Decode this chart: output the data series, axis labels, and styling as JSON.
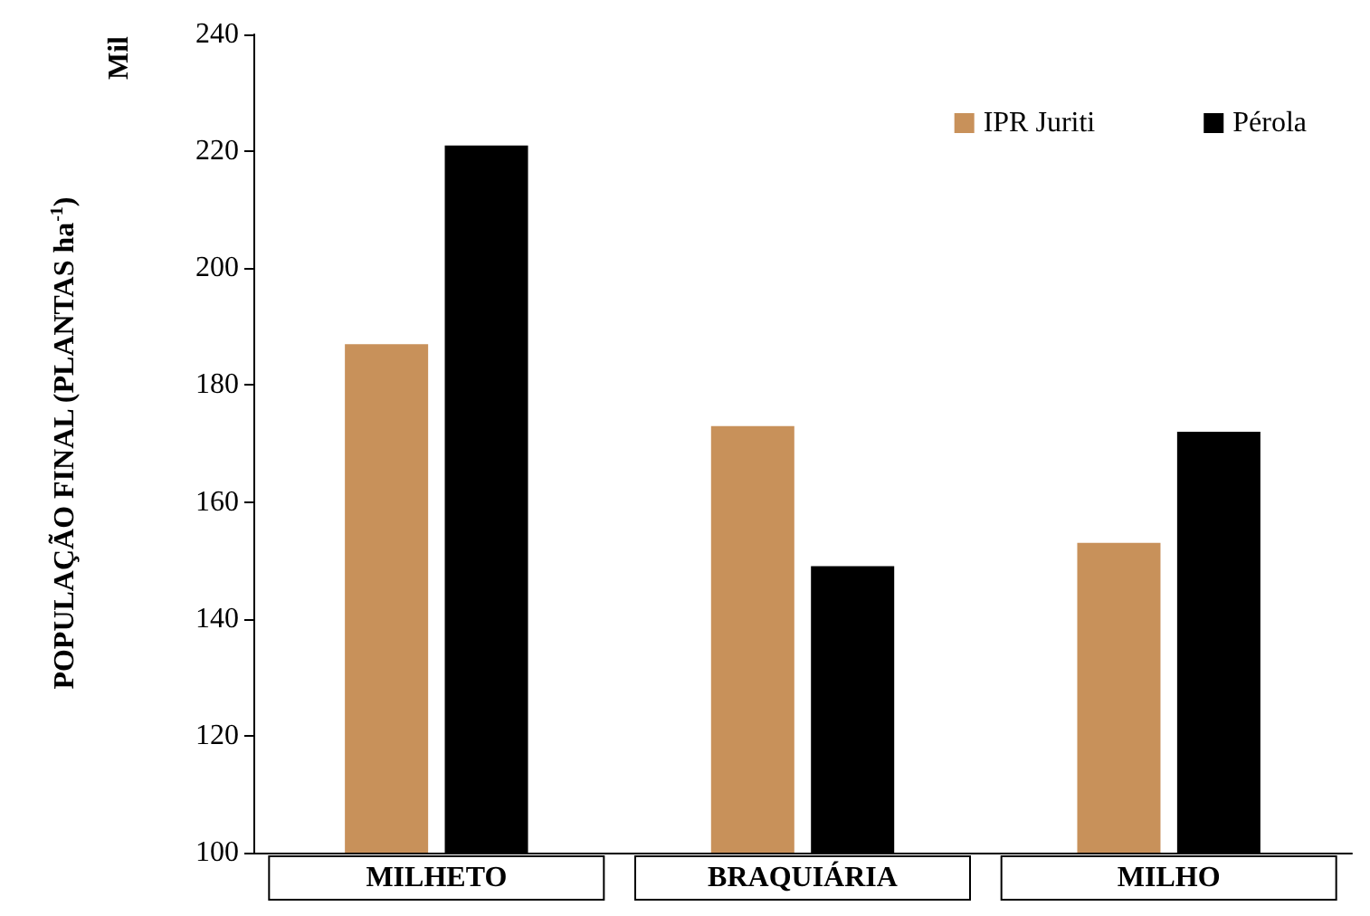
{
  "chart_data": {
    "type": "bar",
    "ylabel": "POPULAÇÃO FINAL (PLANTAS ha$^{-1}$)",
    "annotations": [
      "Mil"
    ],
    "categories": [
      "MILHETO",
      "BRAQUIÁRIA",
      "MILHO"
    ],
    "series": [
      {
        "name": "IPR Juriti",
        "color": "#c8915a",
        "values": [
          187,
          173,
          153
        ]
      },
      {
        "name": "Pérola",
        "color": "#000000",
        "values": [
          221,
          149,
          172
        ]
      }
    ],
    "ylim": [
      100,
      240
    ],
    "yticks": [
      100,
      120,
      140,
      160,
      180,
      200,
      220,
      240
    ],
    "grid": false,
    "legend": "top right"
  }
}
